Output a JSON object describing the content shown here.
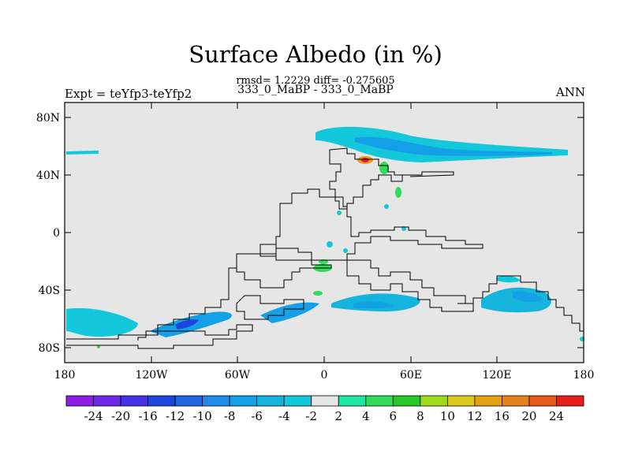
{
  "title": "Surface Albedo (in %)",
  "stats_line": "rmsd= 1.2229 diff= -0.275605",
  "subtitle": "333_0_MaBP - 333_0_MaBP",
  "left_label": "Expt = teYfp3-teYfp2",
  "right_label": "ANN",
  "lat_ticks": [
    "80N",
    "40N",
    "0",
    "40S",
    "80S"
  ],
  "lon_ticks": [
    "180",
    "120W",
    "60W",
    "0",
    "60E",
    "120E",
    "180"
  ],
  "colorbar": {
    "labels": [
      "-24",
      "-20",
      "-16",
      "-12",
      "-10",
      "-8",
      "-6",
      "-4",
      "-2",
      "2",
      "4",
      "6",
      "8",
      "10",
      "12",
      "16",
      "20",
      "24"
    ],
    "colors": [
      "#8c1ee6",
      "#6e28e6",
      "#4632e6",
      "#1e46dc",
      "#1e64e1",
      "#1e8ce6",
      "#14a0e6",
      "#14b4dc",
      "#14c8dc",
      "#e6e6e6",
      "#1ee6a0",
      "#32dc5a",
      "#28c828",
      "#a0dc1e",
      "#dcc81e",
      "#e6a014",
      "#e6821e",
      "#e65a1e",
      "#e61e1e"
    ]
  },
  "colors": {
    "background": "#e6e6e6",
    "coastline": "#000000"
  },
  "map_data": {
    "projection": "cylindrical-equidistant",
    "lon_range": [
      -180,
      180
    ],
    "lat_range": [
      -90,
      90
    ],
    "variable": "Surface Albedo difference (%)"
  }
}
